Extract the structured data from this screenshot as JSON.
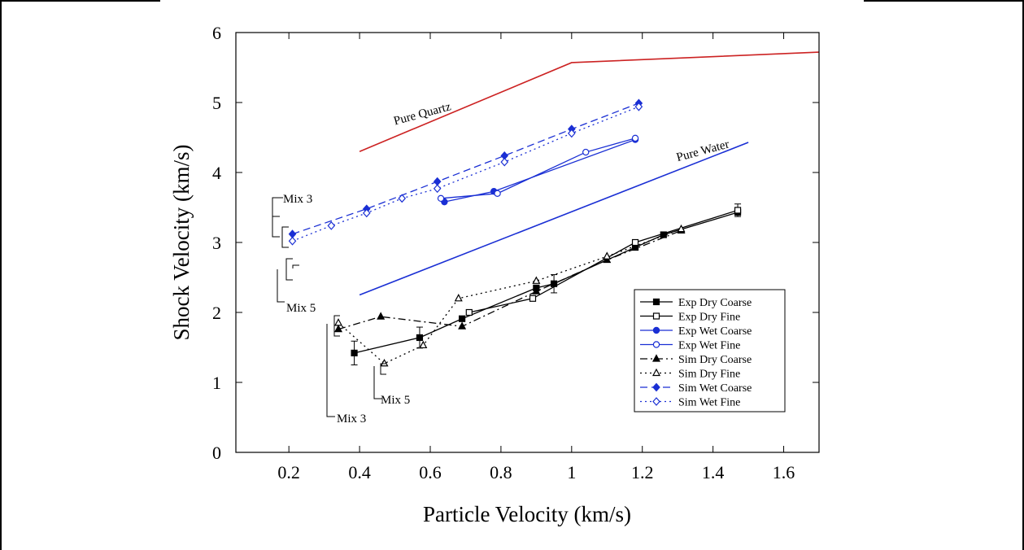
{
  "chart_data": {
    "type": "line",
    "xlabel": "Particle Velocity (km/s)",
    "ylabel": "Shock Velocity (km/s)",
    "xlim": [
      0.05,
      1.7
    ],
    "ylim": [
      0,
      6
    ],
    "xticks": [
      0.2,
      0.4,
      0.6,
      0.8,
      1,
      1.2,
      1.4,
      1.6
    ],
    "xtick_labels": [
      "0.2",
      "0.4",
      "0.6",
      "0.8",
      "1",
      "1.2",
      "1.4",
      "1.6"
    ],
    "yticks": [
      0,
      1,
      2,
      3,
      4,
      5,
      6
    ],
    "ytick_labels": [
      "0",
      "1",
      "2",
      "3",
      "4",
      "5",
      "6"
    ],
    "grid": false,
    "legend_position": "lower-right",
    "reference_lines": [
      {
        "label": "Pure Quartz",
        "color": "#cc2222",
        "x": [
          0.4,
          1.0,
          1.7
        ],
        "y": [
          4.3,
          5.57,
          5.72
        ]
      },
      {
        "label": "Pure Water",
        "color": "#1a2fd4",
        "x": [
          0.4,
          1.5
        ],
        "y": [
          2.25,
          4.43
        ]
      }
    ],
    "series": [
      {
        "name": "Exp Dry Coarse",
        "color": "#000000",
        "dash": "solid",
        "marker": "square-filled",
        "x": [
          0.385,
          0.57,
          0.69,
          0.9,
          0.95,
          1.18,
          1.26,
          1.47
        ],
        "y": [
          1.42,
          1.64,
          1.91,
          2.35,
          2.41,
          2.93,
          3.11,
          3.43
        ],
        "yerr": [
          0.17,
          0.15,
          0,
          0,
          0.13,
          0,
          0,
          0
        ]
      },
      {
        "name": "Exp Dry Fine",
        "color": "#000000",
        "dash": "solid",
        "marker": "square-open",
        "x": [
          0.71,
          0.89,
          1.18,
          1.47
        ],
        "y": [
          2.0,
          2.2,
          3.0,
          3.46
        ],
        "yerr": [
          0,
          0,
          0,
          0.09
        ]
      },
      {
        "name": "Exp Wet Coarse",
        "color": "#1a2fd4",
        "dash": "solid",
        "marker": "circle-filled",
        "x": [
          0.64,
          0.78,
          1.18
        ],
        "y": [
          3.58,
          3.73,
          4.47
        ],
        "yerr": [
          0,
          0,
          0
        ]
      },
      {
        "name": "Exp Wet Fine",
        "color": "#1a2fd4",
        "dash": "solid",
        "marker": "circle-open",
        "x": [
          0.63,
          0.79,
          1.04,
          1.18
        ],
        "y": [
          3.63,
          3.7,
          4.29,
          4.49
        ],
        "yerr": [
          0,
          0,
          0,
          0
        ]
      },
      {
        "name": "Sim Dry Coarse",
        "color": "#000000",
        "dash": "dashdot",
        "marker": "triangle-filled",
        "x": [
          0.34,
          0.46,
          0.69,
          0.9,
          1.1,
          1.31
        ],
        "y": [
          1.76,
          1.94,
          1.8,
          2.3,
          2.75,
          3.17
        ],
        "yerr": [
          0,
          0,
          0,
          0,
          0,
          0
        ]
      },
      {
        "name": "Sim Dry Fine",
        "color": "#000000",
        "dash": "dotted",
        "marker": "triangle-open",
        "x": [
          0.34,
          0.47,
          0.58,
          0.68,
          0.9,
          1.1,
          1.31
        ],
        "y": [
          1.85,
          1.27,
          1.53,
          2.2,
          2.45,
          2.8,
          3.19
        ],
        "yerr": [
          0,
          0,
          0,
          0,
          0,
          0,
          0
        ]
      },
      {
        "name": "Sim Wet Coarse",
        "color": "#1a2fd4",
        "dash": "dashed",
        "marker": "diamond-filled",
        "x": [
          0.21,
          0.42,
          0.62,
          0.81,
          1.0,
          1.19
        ],
        "y": [
          3.12,
          3.48,
          3.87,
          4.24,
          4.62,
          4.99
        ],
        "yerr": [
          0,
          0,
          0,
          0,
          0,
          0
        ]
      },
      {
        "name": "Sim Wet Fine",
        "color": "#1a2fd4",
        "dash": "dotted",
        "marker": "diamond-open",
        "x": [
          0.21,
          0.32,
          0.42,
          0.52,
          0.62,
          0.81,
          1.0,
          1.19
        ],
        "y": [
          3.02,
          3.24,
          3.42,
          3.63,
          3.77,
          4.15,
          4.56,
          4.94
        ],
        "yerr": [
          0,
          0,
          0,
          0,
          0,
          0,
          0,
          0
        ]
      }
    ],
    "annotations": [
      "Mix 3",
      "Mix 5",
      "Mix 3",
      "Mix 5"
    ]
  }
}
